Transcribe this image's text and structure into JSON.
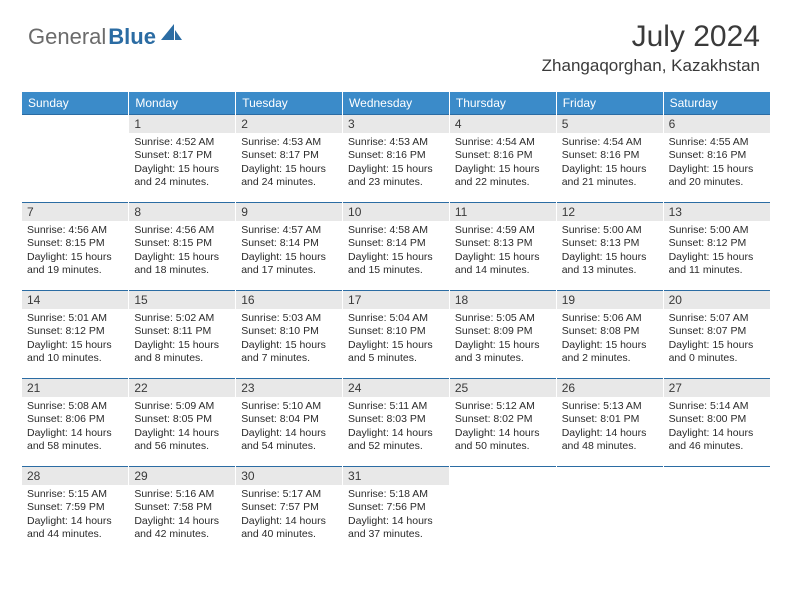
{
  "logo": {
    "gray": "General",
    "blue": "Blue"
  },
  "header": {
    "month_title": "July 2024",
    "location": "Zhangaqorghan, Kazakhstan"
  },
  "colors": {
    "header_bg": "#3b8bc9",
    "header_text": "#ffffff",
    "daynum_bg": "#e8e8e8",
    "daynum_border": "#2b6ca3",
    "text": "#2a2a2a",
    "logo_gray": "#6b6b6b",
    "logo_blue": "#2b6ca3"
  },
  "day_headers": [
    "Sunday",
    "Monday",
    "Tuesday",
    "Wednesday",
    "Thursday",
    "Friday",
    "Saturday"
  ],
  "weeks": [
    [
      null,
      {
        "n": "1",
        "sr": "4:52 AM",
        "ss": "8:17 PM",
        "dl": "15 hours and 24 minutes."
      },
      {
        "n": "2",
        "sr": "4:53 AM",
        "ss": "8:17 PM",
        "dl": "15 hours and 24 minutes."
      },
      {
        "n": "3",
        "sr": "4:53 AM",
        "ss": "8:16 PM",
        "dl": "15 hours and 23 minutes."
      },
      {
        "n": "4",
        "sr": "4:54 AM",
        "ss": "8:16 PM",
        "dl": "15 hours and 22 minutes."
      },
      {
        "n": "5",
        "sr": "4:54 AM",
        "ss": "8:16 PM",
        "dl": "15 hours and 21 minutes."
      },
      {
        "n": "6",
        "sr": "4:55 AM",
        "ss": "8:16 PM",
        "dl": "15 hours and 20 minutes."
      }
    ],
    [
      {
        "n": "7",
        "sr": "4:56 AM",
        "ss": "8:15 PM",
        "dl": "15 hours and 19 minutes."
      },
      {
        "n": "8",
        "sr": "4:56 AM",
        "ss": "8:15 PM",
        "dl": "15 hours and 18 minutes."
      },
      {
        "n": "9",
        "sr": "4:57 AM",
        "ss": "8:14 PM",
        "dl": "15 hours and 17 minutes."
      },
      {
        "n": "10",
        "sr": "4:58 AM",
        "ss": "8:14 PM",
        "dl": "15 hours and 15 minutes."
      },
      {
        "n": "11",
        "sr": "4:59 AM",
        "ss": "8:13 PM",
        "dl": "15 hours and 14 minutes."
      },
      {
        "n": "12",
        "sr": "5:00 AM",
        "ss": "8:13 PM",
        "dl": "15 hours and 13 minutes."
      },
      {
        "n": "13",
        "sr": "5:00 AM",
        "ss": "8:12 PM",
        "dl": "15 hours and 11 minutes."
      }
    ],
    [
      {
        "n": "14",
        "sr": "5:01 AM",
        "ss": "8:12 PM",
        "dl": "15 hours and 10 minutes."
      },
      {
        "n": "15",
        "sr": "5:02 AM",
        "ss": "8:11 PM",
        "dl": "15 hours and 8 minutes."
      },
      {
        "n": "16",
        "sr": "5:03 AM",
        "ss": "8:10 PM",
        "dl": "15 hours and 7 minutes."
      },
      {
        "n": "17",
        "sr": "5:04 AM",
        "ss": "8:10 PM",
        "dl": "15 hours and 5 minutes."
      },
      {
        "n": "18",
        "sr": "5:05 AM",
        "ss": "8:09 PM",
        "dl": "15 hours and 3 minutes."
      },
      {
        "n": "19",
        "sr": "5:06 AM",
        "ss": "8:08 PM",
        "dl": "15 hours and 2 minutes."
      },
      {
        "n": "20",
        "sr": "5:07 AM",
        "ss": "8:07 PM",
        "dl": "15 hours and 0 minutes."
      }
    ],
    [
      {
        "n": "21",
        "sr": "5:08 AM",
        "ss": "8:06 PM",
        "dl": "14 hours and 58 minutes."
      },
      {
        "n": "22",
        "sr": "5:09 AM",
        "ss": "8:05 PM",
        "dl": "14 hours and 56 minutes."
      },
      {
        "n": "23",
        "sr": "5:10 AM",
        "ss": "8:04 PM",
        "dl": "14 hours and 54 minutes."
      },
      {
        "n": "24",
        "sr": "5:11 AM",
        "ss": "8:03 PM",
        "dl": "14 hours and 52 minutes."
      },
      {
        "n": "25",
        "sr": "5:12 AM",
        "ss": "8:02 PM",
        "dl": "14 hours and 50 minutes."
      },
      {
        "n": "26",
        "sr": "5:13 AM",
        "ss": "8:01 PM",
        "dl": "14 hours and 48 minutes."
      },
      {
        "n": "27",
        "sr": "5:14 AM",
        "ss": "8:00 PM",
        "dl": "14 hours and 46 minutes."
      }
    ],
    [
      {
        "n": "28",
        "sr": "5:15 AM",
        "ss": "7:59 PM",
        "dl": "14 hours and 44 minutes."
      },
      {
        "n": "29",
        "sr": "5:16 AM",
        "ss": "7:58 PM",
        "dl": "14 hours and 42 minutes."
      },
      {
        "n": "30",
        "sr": "5:17 AM",
        "ss": "7:57 PM",
        "dl": "14 hours and 40 minutes."
      },
      {
        "n": "31",
        "sr": "5:18 AM",
        "ss": "7:56 PM",
        "dl": "14 hours and 37 minutes."
      },
      null,
      null,
      null
    ]
  ],
  "labels": {
    "sunrise": "Sunrise: ",
    "sunset": "Sunset: ",
    "daylight": "Daylight: "
  }
}
